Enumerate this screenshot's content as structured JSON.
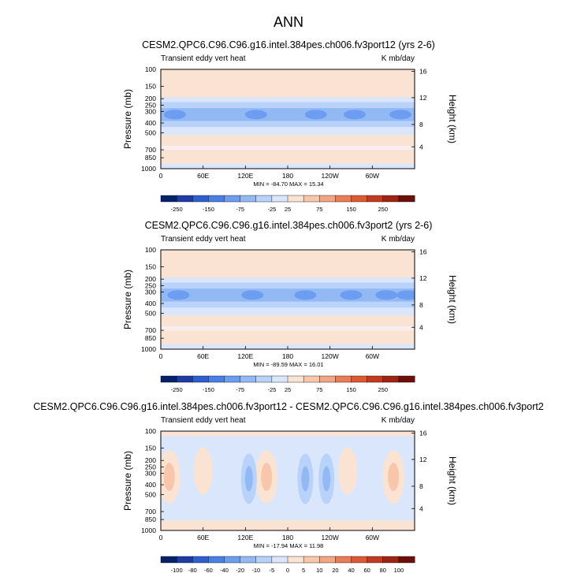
{
  "page_title": "ANN",
  "chart_data": [
    {
      "type": "heatmap",
      "title": "CESM2.QPC6.C96.C96.g16.intel.384pes.ch006.fv3port12 (yrs 2-6)",
      "left_subtitle": "Transient eddy vert heat",
      "right_subtitle": "K mb/day",
      "ylabel": "Pressure (mb)",
      "ylabel_right": "Height (km)",
      "ylim": [
        1000,
        100
      ],
      "y_ticks": [
        "100",
        "150",
        "200",
        "250",
        "300",
        "400",
        "500",
        "700",
        "850",
        "1000"
      ],
      "y_right_ticks": [
        "16",
        "12",
        "8",
        "4"
      ],
      "x_ticks": [
        "0",
        "60E",
        "120E",
        "180",
        "120W",
        "60W"
      ],
      "stats": "MIN = -84.70  MAX = 15.34",
      "colorbar_labels": [
        "-250",
        "-150",
        "-75",
        "-25",
        "25",
        "75",
        "150",
        "250"
      ],
      "colorbar_colors": [
        "#08216b",
        "#1f3ca6",
        "#2f5ed1",
        "#4a7fe6",
        "#6c9df0",
        "#93b9f5",
        "#b8d2fa",
        "#d9e6fb",
        "#fbe3d4",
        "#f8c7ab",
        "#f3a683",
        "#ea7d55",
        "#dc5a32",
        "#c23b1e",
        "#9e2414",
        "#6d0f0a"
      ],
      "blob_lons": [
        20,
        135,
        220,
        275,
        340
      ]
    },
    {
      "type": "heatmap",
      "title": "CESM2.QPC6.C96.C96.g16.intel.384pes.ch006.fv3port2 (yrs 2-6)",
      "left_subtitle": "Transient eddy vert heat",
      "right_subtitle": "K mb/day",
      "ylabel": "Pressure (mb)",
      "ylabel_right": "Height (km)",
      "ylim": [
        1000,
        100
      ],
      "y_ticks": [
        "100",
        "150",
        "200",
        "250",
        "300",
        "400",
        "500",
        "700",
        "850",
        "1000"
      ],
      "y_right_ticks": [
        "16",
        "12",
        "8",
        "4"
      ],
      "x_ticks": [
        "0",
        "60E",
        "120E",
        "180",
        "120W",
        "60W"
      ],
      "stats": "MIN = -89.59  MAX = 16.01",
      "colorbar_labels": [
        "-250",
        "-150",
        "-75",
        "-25",
        "25",
        "75",
        "150",
        "250"
      ],
      "colorbar_colors": [
        "#08216b",
        "#1f3ca6",
        "#2f5ed1",
        "#4a7fe6",
        "#6c9df0",
        "#93b9f5",
        "#b8d2fa",
        "#d9e6fb",
        "#fbe3d4",
        "#f8c7ab",
        "#f3a683",
        "#ea7d55",
        "#dc5a32",
        "#c23b1e",
        "#9e2414",
        "#6d0f0a"
      ],
      "blob_lons": [
        25,
        130,
        205,
        270,
        320,
        350
      ]
    },
    {
      "type": "heatmap",
      "title": "CESM2.QPC6.C96.C96.g16.intel.384pes.ch006.fv3port12 - CESM2.QPC6.C96.C96.g16.intel.384pes.ch006.fv3port2",
      "left_subtitle": "Transient eddy vert heat",
      "right_subtitle": "K mb/day",
      "ylabel": "Pressure (mb)",
      "ylabel_right": "Height (km)",
      "ylim": [
        1000,
        100
      ],
      "y_ticks": [
        "100",
        "150",
        "200",
        "250",
        "300",
        "400",
        "500",
        "700",
        "850",
        "1000"
      ],
      "y_right_ticks": [
        "16",
        "12",
        "8",
        "4"
      ],
      "x_ticks": [
        "0",
        "60E",
        "120E",
        "180",
        "120W",
        "60W"
      ],
      "stats": "MIN = -17.94  MAX = 11.98",
      "colorbar_labels": [
        "-100",
        "-80",
        "-60",
        "-40",
        "-20",
        "-10",
        "-5",
        "0",
        "5",
        "10",
        "20",
        "40",
        "60",
        "80",
        "100"
      ],
      "colorbar_colors": [
        "#08216b",
        "#1f3ca6",
        "#2f5ed1",
        "#4a7fe6",
        "#6c9df0",
        "#93b9f5",
        "#b8d2fa",
        "#d9e6fb",
        "#fbe3d4",
        "#f8c7ab",
        "#f3a683",
        "#ea7d55",
        "#dc5a32",
        "#c23b1e",
        "#9e2414",
        "#6d0f0a"
      ],
      "diff_lons": [
        12,
        60,
        125,
        150,
        205,
        235,
        265,
        330
      ]
    }
  ]
}
